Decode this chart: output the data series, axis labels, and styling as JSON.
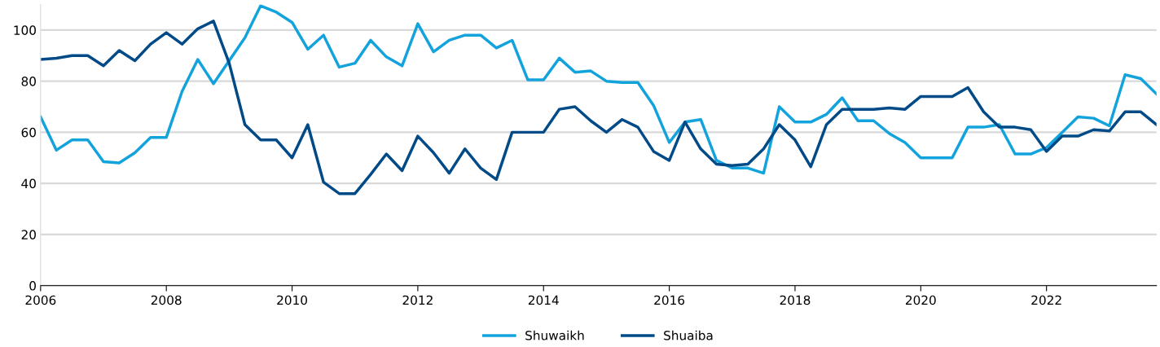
{
  "chart_data": {
    "type": "line",
    "x": [
      2006,
      2006.25,
      2006.5,
      2006.75,
      2007,
      2007.25,
      2007.5,
      2007.75,
      2008,
      2008.25,
      2008.5,
      2008.75,
      2009,
      2009.25,
      2009.5,
      2009.75,
      2010,
      2010.25,
      2010.5,
      2010.75,
      2011,
      2011.25,
      2011.5,
      2011.75,
      2012,
      2012.25,
      2012.5,
      2012.75,
      2013,
      2013.25,
      2013.5,
      2013.75,
      2014,
      2014.25,
      2014.5,
      2014.75,
      2015,
      2015.25,
      2015.5,
      2015.75,
      2016,
      2016.25,
      2016.5,
      2016.75,
      2017,
      2017.25,
      2017.5,
      2017.75,
      2018,
      2018.25,
      2018.5,
      2018.75,
      2019,
      2019.25,
      2019.5,
      2019.75,
      2020,
      2020.25,
      2020.5,
      2020.75,
      2021,
      2021.25,
      2021.5,
      2021.75,
      2022,
      2022.25,
      2022.5,
      2022.75,
      2023,
      2023.25,
      2023.5,
      2023.75
    ],
    "series": [
      {
        "name": "Shuwaikh",
        "color": "#13a3dc",
        "values": [
          66,
          53,
          57,
          57,
          48.5,
          48,
          52,
          58,
          58,
          76,
          88.5,
          79,
          88,
          97,
          109.5,
          107,
          103,
          92.5,
          98,
          85.5,
          87,
          96,
          89.5,
          86,
          102.5,
          91.5,
          96,
          98,
          98,
          93,
          96,
          80.5,
          80.5,
          89,
          83.5,
          84,
          80,
          79.5,
          79.5,
          70.5,
          56,
          64,
          65,
          49,
          46,
          46,
          44,
          70,
          64,
          64,
          67,
          73.5,
          64.5,
          64.5,
          59.5,
          56,
          50,
          50,
          50,
          62,
          62,
          63,
          51.5,
          51.5,
          54,
          60,
          66,
          65.5,
          62.5,
          82.5,
          81,
          75
        ]
      },
      {
        "name": "Shuaiba",
        "color": "#004b87",
        "values": [
          88.5,
          89,
          90,
          90,
          86,
          92,
          88,
          94.5,
          99,
          94.5,
          100.5,
          103.5,
          87,
          63,
          57,
          57,
          50,
          63,
          40.5,
          36,
          36,
          43.5,
          51.5,
          45,
          58.5,
          52,
          44,
          53.5,
          46,
          41.5,
          60,
          60,
          60,
          69,
          70,
          64.5,
          60,
          65,
          62,
          52.5,
          49,
          64,
          53.5,
          47.5,
          47,
          47.5,
          53.5,
          63,
          57,
          46.5,
          63,
          69,
          69,
          69,
          69.5,
          69,
          74,
          74,
          74,
          77.5,
          68,
          62,
          62,
          61,
          52.5,
          58.5,
          58.5,
          61,
          60.5,
          68,
          68,
          63
        ]
      }
    ],
    "xlim": [
      2006,
      2023.75
    ],
    "xticks": [
      2006,
      2008,
      2010,
      2012,
      2014,
      2016,
      2018,
      2020,
      2022
    ],
    "ylim": [
      0,
      110
    ],
    "yticks": [
      0,
      20,
      40,
      60,
      80,
      100
    ],
    "grid": "y",
    "legend": "bottom",
    "line_style": "solid",
    "marker": "none"
  }
}
